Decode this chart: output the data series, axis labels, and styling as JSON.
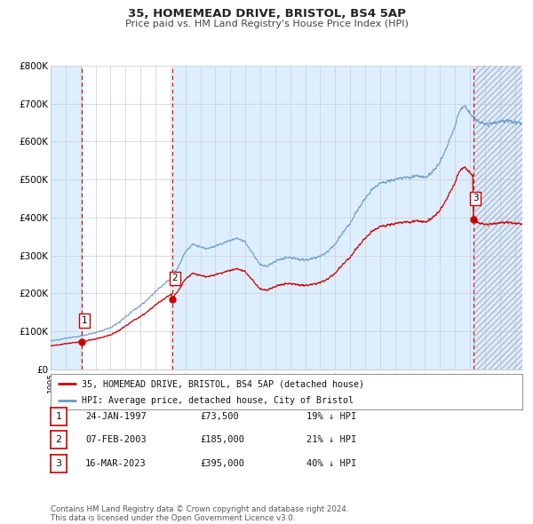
{
  "title_line1": "35, HOMEMEAD DRIVE, BRISTOL, BS4 5AP",
  "title_line2": "Price paid vs. HM Land Registry's House Price Index (HPI)",
  "xlim": [
    1995.0,
    2026.5
  ],
  "ylim": [
    0,
    800000
  ],
  "yticks": [
    0,
    100000,
    200000,
    300000,
    400000,
    500000,
    600000,
    700000,
    800000
  ],
  "ytick_labels": [
    "£0",
    "£100K",
    "£200K",
    "£300K",
    "£400K",
    "£500K",
    "£600K",
    "£700K",
    "£800K"
  ],
  "xtick_years": [
    1995,
    1996,
    1997,
    1998,
    1999,
    2000,
    2001,
    2002,
    2003,
    2004,
    2005,
    2006,
    2007,
    2008,
    2009,
    2010,
    2011,
    2012,
    2013,
    2014,
    2015,
    2016,
    2017,
    2018,
    2019,
    2020,
    2021,
    2022,
    2023,
    2024,
    2025,
    2026
  ],
  "sales": [
    {
      "date_num": 1997.07,
      "price": 73500,
      "label": "1"
    },
    {
      "date_num": 2003.1,
      "price": 185000,
      "label": "2"
    },
    {
      "date_num": 2023.21,
      "price": 395000,
      "label": "3"
    }
  ],
  "vline_dates": [
    1997.07,
    2003.1,
    2023.21
  ],
  "hpi_color": "#6699cc",
  "sale_color": "#cc0000",
  "vline_color": "#cc0000",
  "shade_color": "#ddeeff",
  "shade_alpha": 0.6,
  "hatch_color": "#ccccdd",
  "legend_sale_label": "35, HOMEMEAD DRIVE, BRISTOL, BS4 5AP (detached house)",
  "legend_hpi_label": "HPI: Average price, detached house, City of Bristol",
  "table_rows": [
    {
      "num": "1",
      "date": "24-JAN-1997",
      "price": "£73,500",
      "hpi": "19% ↓ HPI"
    },
    {
      "num": "2",
      "date": "07-FEB-2003",
      "price": "£185,000",
      "hpi": "21% ↓ HPI"
    },
    {
      "num": "3",
      "date": "16-MAR-2023",
      "price": "£395,000",
      "hpi": "40% ↓ HPI"
    }
  ],
  "footer": "Contains HM Land Registry data © Crown copyright and database right 2024.\nThis data is licensed under the Open Government Licence v3.0.",
  "grid_color": "#cccccc",
  "background_color": "#ffffff"
}
